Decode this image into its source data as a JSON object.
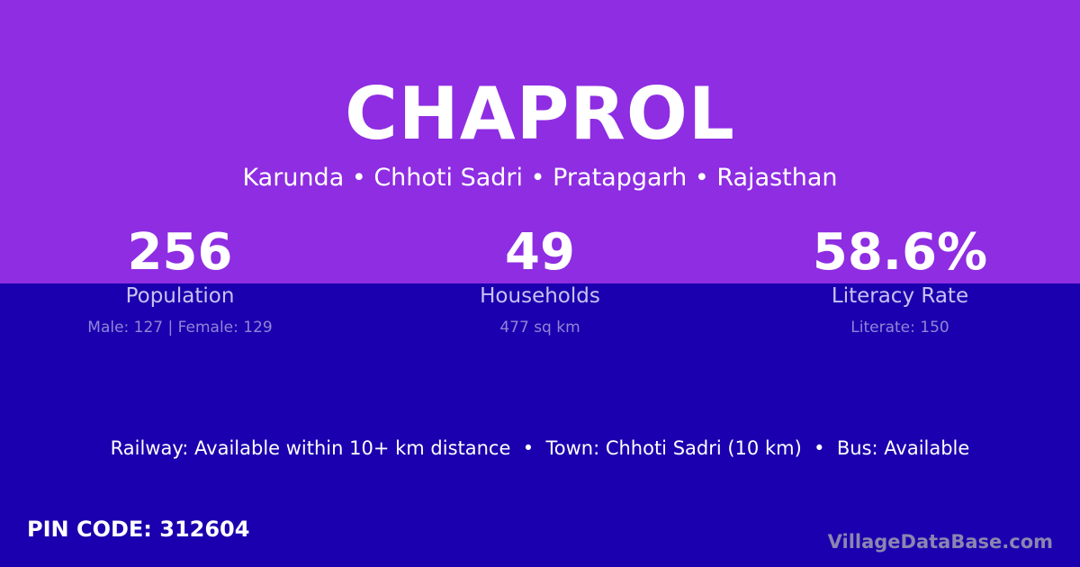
{
  "colors": {
    "top_bg": "#8e2de2",
    "bottom_bg": "#1a00ae"
  },
  "title": "CHAPROL",
  "location": "Karunda • Chhoti Sadri • Pratapgarh • Rajasthan",
  "stats": [
    {
      "value": "256",
      "label": "Population",
      "detail": "Male: 127 | Female: 129"
    },
    {
      "value": "49",
      "label": "Households",
      "detail": "477 sq km"
    },
    {
      "value": "58.6%",
      "label": "Literacy Rate",
      "detail": "Literate: 150"
    }
  ],
  "transport": "Railway: Available within 10+ km distance  •  Town: Chhoti Sadri (10 km)  •  Bus: Available",
  "pin": "PIN CODE: 312604",
  "brand": "VillageDataBase.com"
}
